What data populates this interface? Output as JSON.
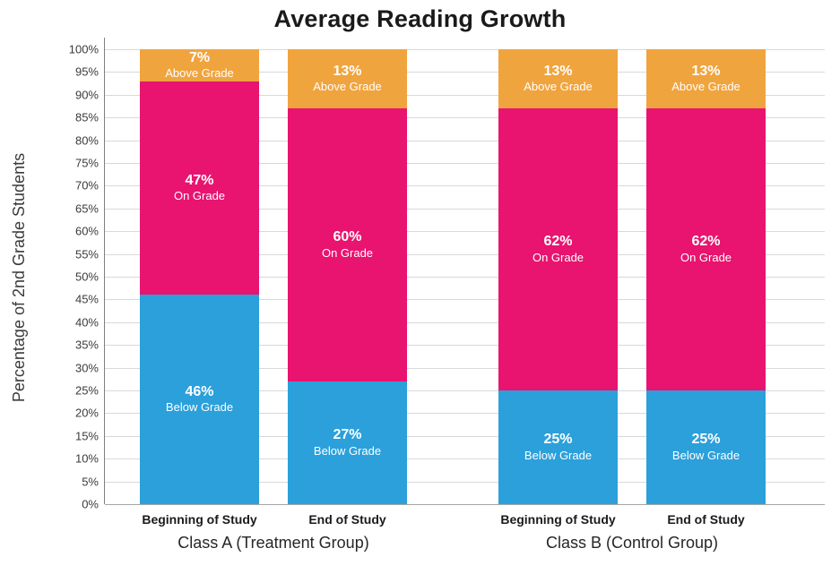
{
  "chart_data": {
    "type": "bar",
    "stacked": true,
    "title": "Average Reading Growth",
    "ylabel": "Percentage of 2nd Grade Students",
    "xlabel": "",
    "ylim": [
      0,
      100
    ],
    "ytick_step": 5,
    "ytick_labels": [
      "0%",
      "5%",
      "10%",
      "15%",
      "20%",
      "25%",
      "30%",
      "35%",
      "40%",
      "45%",
      "50%",
      "55%",
      "60%",
      "65%",
      "70%",
      "75%",
      "80%",
      "85%",
      "90%",
      "95%",
      "100%"
    ],
    "grid": true,
    "legend": false,
    "groups": [
      {
        "label": "Class A (Treatment Group)",
        "categories": [
          "Beginning of Study",
          "End of Study"
        ]
      },
      {
        "label": "Class B (Control Group)",
        "categories": [
          "Beginning of Study",
          "End of Study"
        ]
      }
    ],
    "categories": [
      "Beginning of Study",
      "End of Study",
      "Beginning of Study",
      "End of Study"
    ],
    "series": [
      {
        "name": "Below Grade",
        "color": "#2BA0DB",
        "values": [
          46,
          27,
          25,
          25
        ]
      },
      {
        "name": "On Grade",
        "color": "#E8146F",
        "values": [
          47,
          60,
          62,
          62
        ]
      },
      {
        "name": "Above Grade",
        "color": "#F0A43E",
        "values": [
          7,
          13,
          13,
          13
        ]
      }
    ],
    "segment_label_format": "{value}% / {series_name}",
    "colors": {
      "grid": "#D9D9D9",
      "baseline": "#A6A6A6",
      "axis": "#7F7F7F",
      "segment_text": "#FFFFFF",
      "title_text": "#1A1A1A",
      "tick_text": "#3B3B3B"
    }
  }
}
